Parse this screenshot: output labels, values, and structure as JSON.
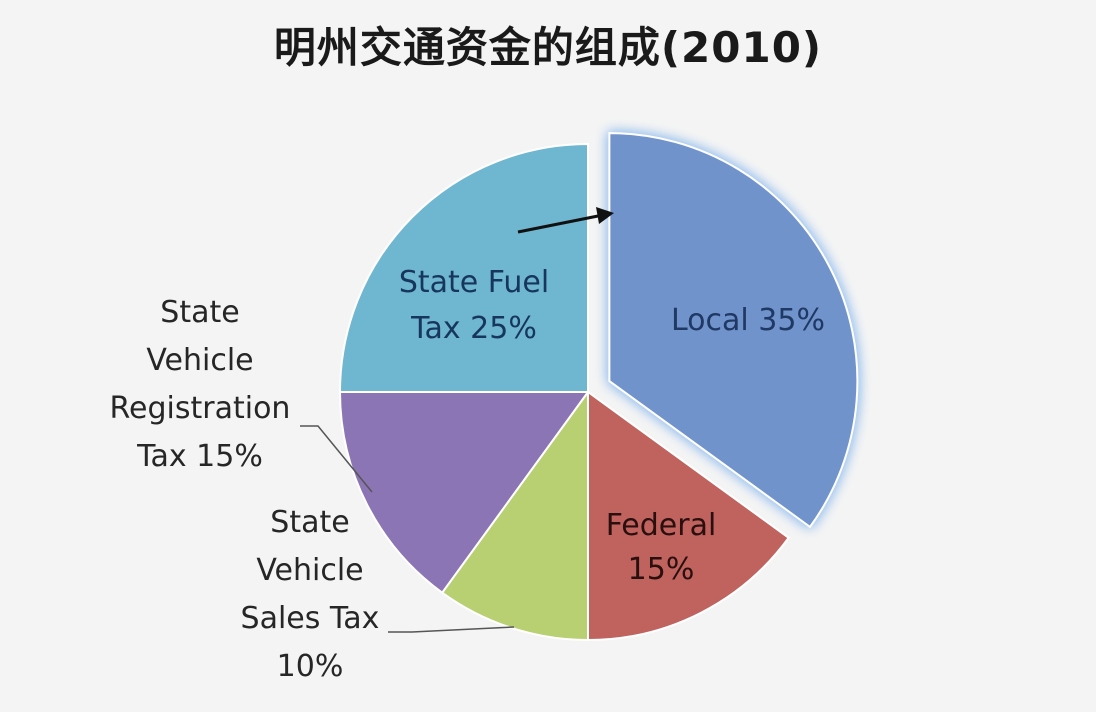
{
  "chart_data": {
    "type": "pie",
    "title": "明州交通资金的组成(2010)",
    "slices": [
      {
        "key": "local",
        "label_lines": [
          "Local 35%"
        ],
        "value": 35,
        "color": "#6f93cc",
        "text_color": "#1f3864",
        "exploded": true
      },
      {
        "key": "federal",
        "label_lines": [
          "Federal",
          "15%"
        ],
        "value": 15,
        "color": "#c0625d",
        "text_color": "#2a0f0f",
        "exploded": false
      },
      {
        "key": "sales",
        "label_lines": [
          "State",
          "Vehicle",
          "Sales Tax",
          "10%"
        ],
        "value": 10,
        "color": "#b8cf72",
        "text_color": "#262626",
        "exploded": false
      },
      {
        "key": "registration",
        "label_lines": [
          "State",
          "Vehicle",
          "Registration",
          "Tax 15%"
        ],
        "value": 15,
        "color": "#8c75b4",
        "text_color": "#262626",
        "exploded": false
      },
      {
        "key": "fuel",
        "label_lines": [
          "State Fuel",
          "Tax 25%"
        ],
        "value": 25,
        "color": "#6fb6d0",
        "text_color": "#17365d",
        "exploded": false
      }
    ],
    "legend": "none",
    "highlight": "local"
  }
}
